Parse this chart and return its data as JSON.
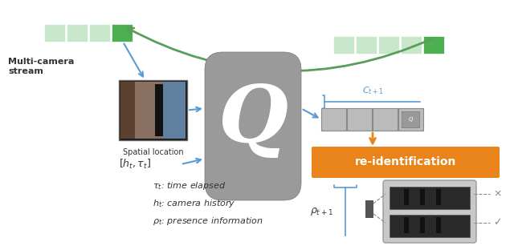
{
  "bg_color": "#ffffff",
  "fig_width": 6.4,
  "fig_height": 3.12,
  "arrow_color": "#5B9BD5",
  "green_color": "#5a9e5a",
  "green_light": "#c8e6c9",
  "green_dark": "#4caf50",
  "orange_color": "#E8841A",
  "gray_q": "#9a9a9a",
  "reid_label": "re-identification",
  "multicamera_label": "Multi-camera\nstream",
  "spatial_label": "Spatial location",
  "ct_label": "$C_{t+1}$",
  "rho_label": "$\\rho_{t+1}$",
  "legend_lines": [
    "$\\tau_t$: time elapsed",
    "$h_t$: camera history",
    "$\\rho_t$: presence information"
  ]
}
